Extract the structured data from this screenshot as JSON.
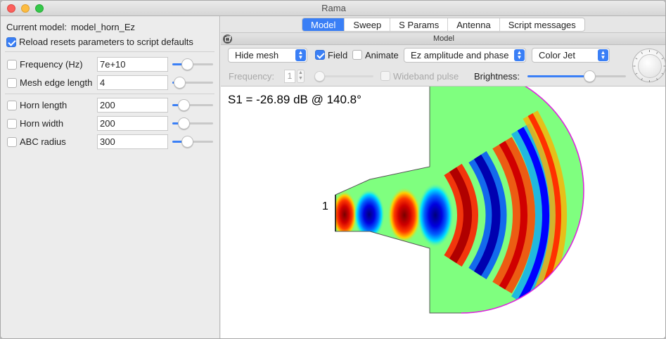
{
  "window": {
    "title": "Rama"
  },
  "left_panel": {
    "current_model_label": "Current model:",
    "current_model_value": "model_horn_Ez",
    "reload_label": "Reload resets parameters to script defaults",
    "reload_checked": true,
    "parameters": [
      {
        "label": "Frequency (Hz)",
        "value": "7e+10",
        "checked": false
      },
      {
        "label": "Mesh edge length",
        "value": "4",
        "checked": false
      },
      {
        "label": "Horn length",
        "value": "200",
        "checked": false
      },
      {
        "label": "Horn width",
        "value": "200",
        "checked": false
      },
      {
        "label": "ABC radius",
        "value": "300",
        "checked": false
      }
    ]
  },
  "tabs": [
    {
      "label": "Model",
      "active": true
    },
    {
      "label": "Sweep",
      "active": false
    },
    {
      "label": "S Params",
      "active": false
    },
    {
      "label": "Antenna",
      "active": false
    },
    {
      "label": "Script messages",
      "active": false
    }
  ],
  "subpanel_title": "Model",
  "toolbar": {
    "mesh_popup": "Hide mesh",
    "field_label": "Field",
    "field_checked": true,
    "animate_label": "Animate",
    "animate_checked": false,
    "display_popup": "Ez amplitude and phase",
    "colormap_popup": "Color Jet",
    "frequency_label": "Frequency:",
    "frequency_value": "1",
    "wideband_label": "Wideband pulse",
    "wideband_checked": false,
    "brightness_label": "Brightness:"
  },
  "view": {
    "s1_text": "S1 = -26.89 dB @ 140.8°",
    "port_label": "1"
  },
  "colors": {
    "accent": "#3a7ff6",
    "boundary": "#e01ee0",
    "jet_green": "#7fff7f"
  }
}
